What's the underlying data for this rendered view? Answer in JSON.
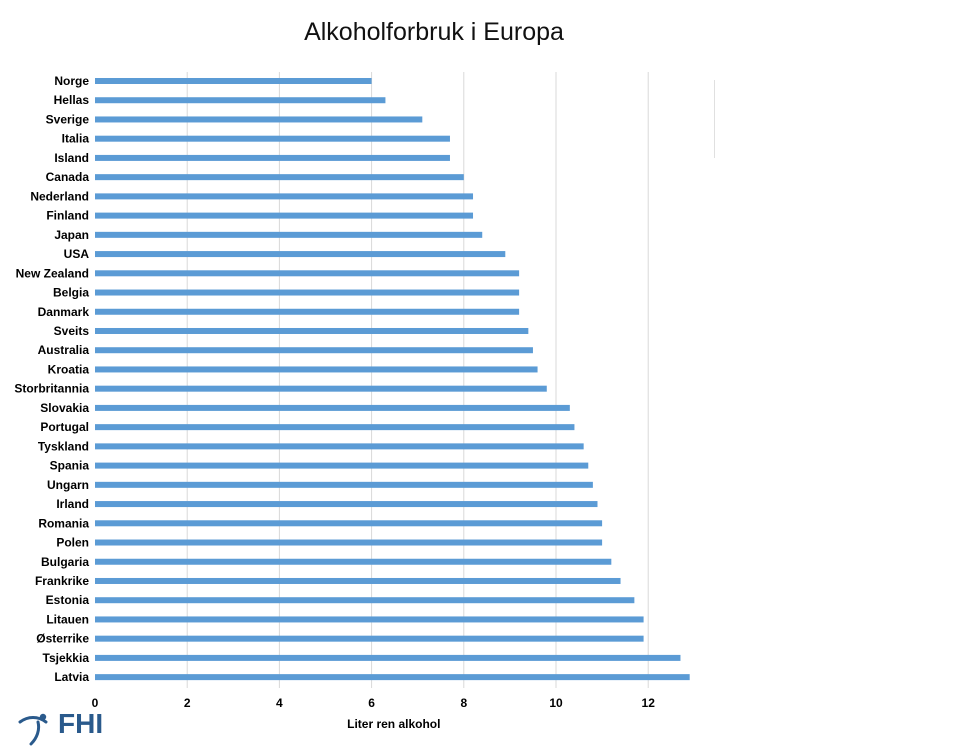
{
  "title": "Alkoholforbruk i Europa",
  "logo": {
    "text": "FHI",
    "icon": "fhi-figure-icon"
  },
  "chart_data": {
    "type": "bar",
    "orientation": "horizontal",
    "categories": [
      "Norge",
      "Hellas",
      "Sverige",
      "Italia",
      "Island",
      "Canada",
      "Nederland",
      "Finland",
      "Japan",
      "USA",
      "New Zealand",
      "Belgia",
      "Danmark",
      "Sveits",
      "Australia",
      "Kroatia",
      "Storbritannia",
      "Slovakia",
      "Portugal",
      "Tyskland",
      "Spania",
      "Ungarn",
      "Irland",
      "Romania",
      "Polen",
      "Bulgaria",
      "Frankrike",
      "Estonia",
      "Litauen",
      "Østerrike",
      "Tsjekkia",
      "Latvia"
    ],
    "values": [
      6.0,
      6.3,
      7.1,
      7.7,
      7.7,
      8.0,
      8.2,
      8.2,
      8.4,
      8.9,
      9.2,
      9.2,
      9.2,
      9.4,
      9.5,
      9.6,
      9.8,
      10.3,
      10.4,
      10.6,
      10.7,
      10.8,
      10.9,
      11.0,
      11.0,
      11.2,
      11.4,
      11.7,
      11.9,
      11.9,
      12.7,
      12.9
    ],
    "xlabel": "Liter ren alkohol",
    "ylabel": "",
    "xlim": [
      0,
      13
    ],
    "xticks": [
      0,
      2,
      4,
      6,
      8,
      10,
      12
    ],
    "grid": "vertical",
    "legend": "none",
    "colors": {
      "bar": "#5b9bd5",
      "grid": "#d9d9d9",
      "text": "#000000"
    }
  }
}
